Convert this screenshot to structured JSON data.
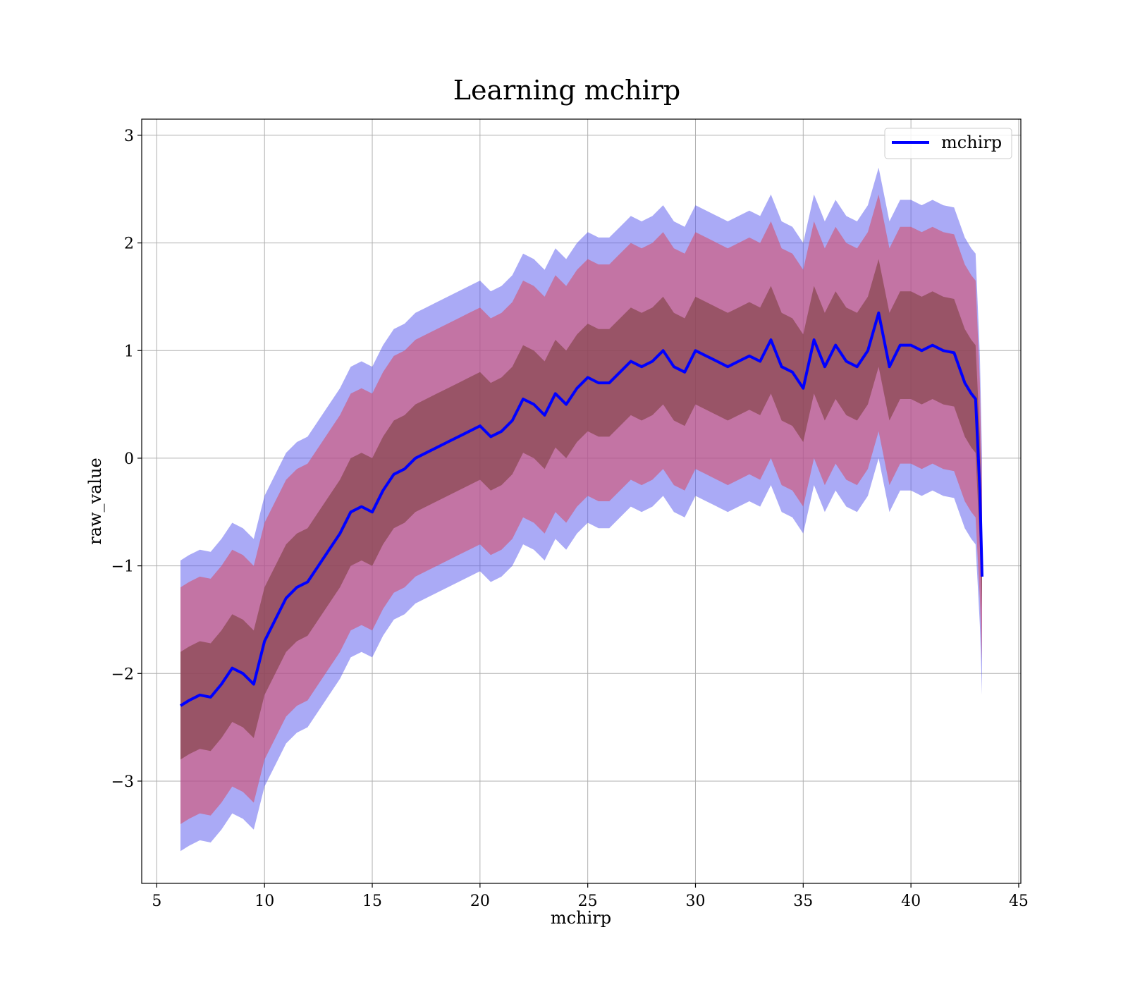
{
  "chart_data": {
    "type": "line",
    "title": "Learning mchirp",
    "xlabel": "mchirp",
    "ylabel": "raw_value",
    "xlim": [
      4.3,
      45.1
    ],
    "ylim": [
      -3.95,
      3.15
    ],
    "xticks": [
      5,
      10,
      15,
      20,
      25,
      30,
      35,
      40,
      45
    ],
    "yticks": [
      -3,
      -2,
      -1,
      0,
      1,
      2,
      3
    ],
    "xtick_labels": [
      "5",
      "10",
      "15",
      "20",
      "25",
      "30",
      "35",
      "40",
      "45"
    ],
    "ytick_labels": [
      "−3",
      "−2",
      "−1",
      "0",
      "1",
      "2",
      "3"
    ],
    "grid": true,
    "legend": {
      "position": "top-right",
      "entries": [
        "mchirp"
      ]
    },
    "colors": {
      "line": "#0000ff",
      "outer_band": "#5555ee",
      "middle_band": "#d4506e",
      "inner_band": "#7d3f3f"
    },
    "series": [
      {
        "name": "mchirp",
        "x": [
          6.1,
          6.5,
          7.0,
          7.5,
          8.0,
          8.5,
          9.0,
          9.5,
          10.0,
          10.5,
          11.0,
          11.5,
          12.0,
          12.5,
          13.0,
          13.5,
          14.0,
          14.5,
          15.0,
          15.5,
          16.0,
          16.5,
          17.0,
          17.5,
          18.0,
          18.5,
          19.0,
          19.5,
          20.0,
          20.5,
          21.0,
          21.5,
          22.0,
          22.5,
          23.0,
          23.5,
          24.0,
          24.5,
          25.0,
          25.5,
          26.0,
          26.5,
          27.0,
          27.5,
          28.0,
          28.5,
          29.0,
          29.5,
          30.0,
          30.5,
          31.0,
          31.5,
          32.0,
          32.5,
          33.0,
          33.5,
          34.0,
          34.5,
          35.0,
          35.5,
          36.0,
          36.5,
          37.0,
          37.5,
          38.0,
          38.5,
          39.0,
          39.5,
          40.0,
          40.5,
          41.0,
          41.5,
          42.0,
          42.5,
          42.8,
          43.0,
          43.2,
          43.3
        ],
        "y": [
          -2.3,
          -2.25,
          -2.2,
          -2.22,
          -2.1,
          -1.95,
          -2.0,
          -2.1,
          -1.7,
          -1.5,
          -1.3,
          -1.2,
          -1.15,
          -1.0,
          -0.85,
          -0.7,
          -0.5,
          -0.45,
          -0.5,
          -0.3,
          -0.15,
          -0.1,
          0.0,
          0.05,
          0.1,
          0.15,
          0.2,
          0.25,
          0.3,
          0.2,
          0.25,
          0.35,
          0.55,
          0.5,
          0.4,
          0.6,
          0.5,
          0.65,
          0.75,
          0.7,
          0.7,
          0.8,
          0.9,
          0.85,
          0.9,
          1.0,
          0.85,
          0.8,
          1.0,
          0.95,
          0.9,
          0.85,
          0.9,
          0.95,
          0.9,
          1.1,
          0.85,
          0.8,
          0.65,
          1.1,
          0.85,
          1.05,
          0.9,
          0.85,
          1.0,
          1.35,
          0.85,
          1.05,
          1.05,
          1.0,
          1.05,
          1.0,
          0.98,
          0.7,
          0.6,
          0.55,
          -0.3,
          -1.1
        ],
        "band_inner": [
          0.5,
          0.5,
          0.5,
          0.5,
          0.5,
          0.5,
          0.5,
          0.5,
          0.5,
          0.5,
          0.5,
          0.5,
          0.5,
          0.5,
          0.5,
          0.5,
          0.5,
          0.5,
          0.5,
          0.5,
          0.5,
          0.5,
          0.5,
          0.5,
          0.5,
          0.5,
          0.5,
          0.5,
          0.5,
          0.5,
          0.5,
          0.5,
          0.5,
          0.5,
          0.5,
          0.5,
          0.5,
          0.5,
          0.5,
          0.5,
          0.5,
          0.5,
          0.5,
          0.5,
          0.5,
          0.5,
          0.5,
          0.5,
          0.5,
          0.5,
          0.5,
          0.5,
          0.5,
          0.5,
          0.5,
          0.5,
          0.5,
          0.5,
          0.5,
          0.5,
          0.5,
          0.5,
          0.5,
          0.5,
          0.5,
          0.5,
          0.5,
          0.5,
          0.5,
          0.5,
          0.5,
          0.5,
          0.5,
          0.5,
          0.5,
          0.5,
          0.5,
          0.3
        ],
        "band_middle": [
          1.1,
          1.1,
          1.1,
          1.1,
          1.1,
          1.1,
          1.1,
          1.1,
          1.1,
          1.1,
          1.1,
          1.1,
          1.1,
          1.1,
          1.1,
          1.1,
          1.1,
          1.1,
          1.1,
          1.1,
          1.1,
          1.1,
          1.1,
          1.1,
          1.1,
          1.1,
          1.1,
          1.1,
          1.1,
          1.1,
          1.1,
          1.1,
          1.1,
          1.1,
          1.1,
          1.1,
          1.1,
          1.1,
          1.1,
          1.1,
          1.1,
          1.1,
          1.1,
          1.1,
          1.1,
          1.1,
          1.1,
          1.1,
          1.1,
          1.1,
          1.1,
          1.1,
          1.1,
          1.1,
          1.1,
          1.1,
          1.1,
          1.1,
          1.1,
          1.1,
          1.1,
          1.1,
          1.1,
          1.1,
          1.1,
          1.1,
          1.1,
          1.1,
          1.1,
          1.1,
          1.1,
          1.1,
          1.1,
          1.1,
          1.1,
          1.1,
          1.0,
          0.8
        ],
        "band_outer": [
          1.35,
          1.35,
          1.35,
          1.35,
          1.35,
          1.35,
          1.35,
          1.35,
          1.35,
          1.35,
          1.35,
          1.35,
          1.35,
          1.35,
          1.35,
          1.35,
          1.35,
          1.35,
          1.35,
          1.35,
          1.35,
          1.35,
          1.35,
          1.35,
          1.35,
          1.35,
          1.35,
          1.35,
          1.35,
          1.35,
          1.35,
          1.35,
          1.35,
          1.35,
          1.35,
          1.35,
          1.35,
          1.35,
          1.35,
          1.35,
          1.35,
          1.35,
          1.35,
          1.35,
          1.35,
          1.35,
          1.35,
          1.35,
          1.35,
          1.35,
          1.35,
          1.35,
          1.35,
          1.35,
          1.35,
          1.35,
          1.35,
          1.35,
          1.35,
          1.35,
          1.35,
          1.35,
          1.35,
          1.35,
          1.35,
          1.35,
          1.35,
          1.35,
          1.35,
          1.35,
          1.35,
          1.35,
          1.35,
          1.35,
          1.35,
          1.35,
          1.25,
          1.1
        ]
      }
    ]
  }
}
